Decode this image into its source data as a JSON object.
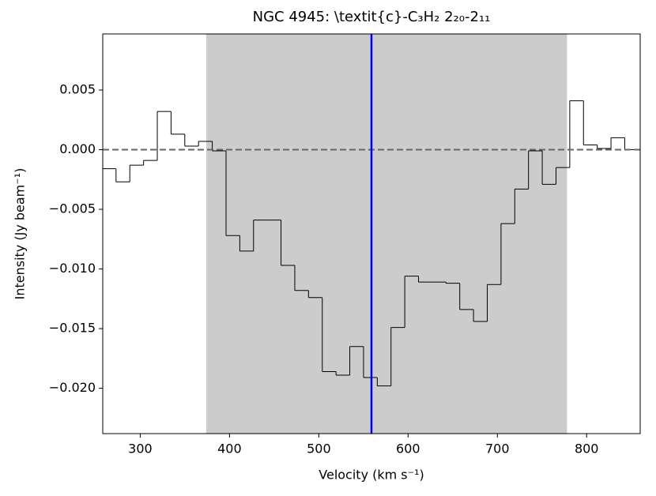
{
  "chart_data": {
    "type": "step",
    "title": "NGC 4945: \\textit{c}-C₃H₂ 2₂₀-2₁₁",
    "x_label": "Velocity (km s⁻¹)",
    "y_label": "Intensity (Jy beam⁻¹)",
    "x": [
      265.2,
      280.6,
      296.0,
      311.4,
      326.8,
      342.2,
      357.6,
      373.0,
      388.4,
      403.8,
      419.2,
      434.6,
      450.0,
      465.4,
      480.8,
      496.2,
      511.6,
      527.0,
      542.4,
      557.8,
      573.2,
      588.6,
      604.0,
      619.4,
      634.8,
      650.2,
      665.6,
      681.0,
      696.4,
      711.8,
      727.2,
      742.6,
      758.0,
      773.4,
      788.8,
      804.2,
      819.6,
      835.0,
      850.4
    ],
    "series": [
      {
        "color": "#000000",
        "values": [
          -0.0016,
          -0.0027,
          -0.0013,
          -0.0009,
          0.0032,
          0.0013,
          0.0003,
          0.0007,
          -0.0001,
          -0.0072,
          -0.0085,
          -0.0059,
          -0.0059,
          -0.0097,
          -0.0118,
          -0.0124,
          -0.0186,
          -0.0189,
          -0.0165,
          -0.0191,
          -0.0198,
          -0.0149,
          -0.0106,
          -0.0111,
          -0.0111,
          -0.0112,
          -0.0134,
          -0.0144,
          -0.0113,
          -0.0062,
          -0.0033,
          -0.0001,
          -0.0029,
          -0.0015,
          0.0041,
          0.0004,
          0.0001,
          0.001,
          0.0
        ]
      }
    ],
    "xlim": [
      258,
      860
    ],
    "ylim": [
      -0.0238,
      0.0097
    ],
    "xticks": [
      300,
      400,
      500,
      600,
      700,
      800
    ],
    "yticks": [
      {
        "value": -0.02,
        "label": "−0.020"
      },
      {
        "value": -0.015,
        "label": "−0.015"
      },
      {
        "value": -0.01,
        "label": "−0.010"
      },
      {
        "value": -0.005,
        "label": "−0.005"
      },
      {
        "value": 0,
        "label": "0.000"
      },
      {
        "value": 0.005,
        "label": "0.005"
      }
    ],
    "shaded_region": [
      374,
      778
    ],
    "shaded_color": "#cccccc",
    "vline": 559,
    "vline_color": "#0000ff",
    "hline": 0,
    "hline_color": "#666666"
  }
}
